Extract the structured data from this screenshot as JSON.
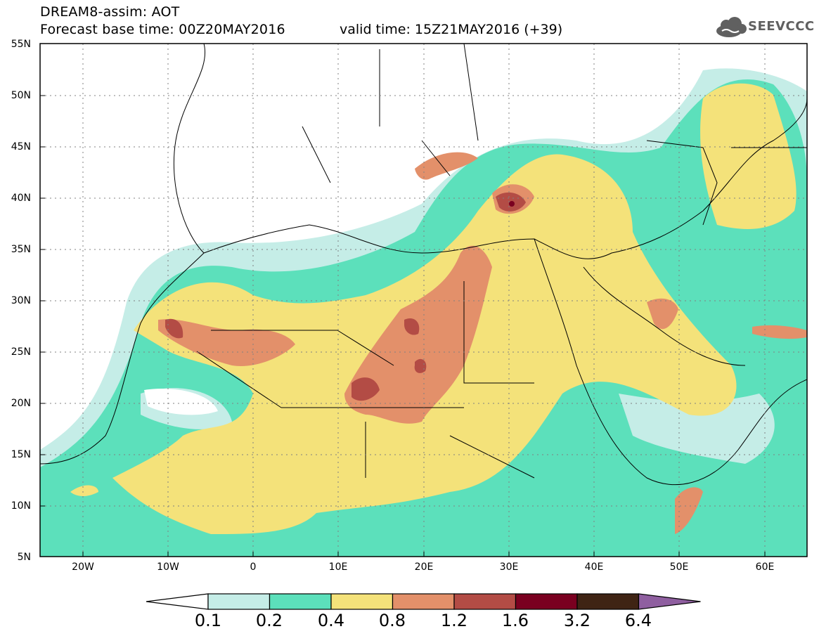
{
  "header": {
    "title_line1": "DREAM8-assim: AOT",
    "title_line2": "Forecast base time: 00Z20MAY2016",
    "valid_time": "valid time: 15Z21MAY2016 (+39)",
    "logo_text": "SEEVCCC"
  },
  "map": {
    "lat_labels": [
      "55N",
      "50N",
      "45N",
      "40N",
      "35N",
      "30N",
      "25N",
      "20N",
      "15N",
      "10N",
      "5N"
    ],
    "lon_labels": [
      "20W",
      "10W",
      "0",
      "10E",
      "20E",
      "30E",
      "40E",
      "50E",
      "60E"
    ],
    "lon_range": [
      -25,
      65
    ],
    "lat_range": [
      5,
      55
    ],
    "field": "AOT"
  },
  "colorbar": {
    "levels": [
      "0.1",
      "0.2",
      "0.4",
      "0.8",
      "1.2",
      "1.6",
      "3.2",
      "6.4"
    ],
    "colors": [
      "#ffffff",
      "#c5ede7",
      "#5ce0bb",
      "#f4e27a",
      "#e3906a",
      "#b34c45",
      "#7a0020",
      "#3f2414",
      "#8f5fa0"
    ]
  }
}
